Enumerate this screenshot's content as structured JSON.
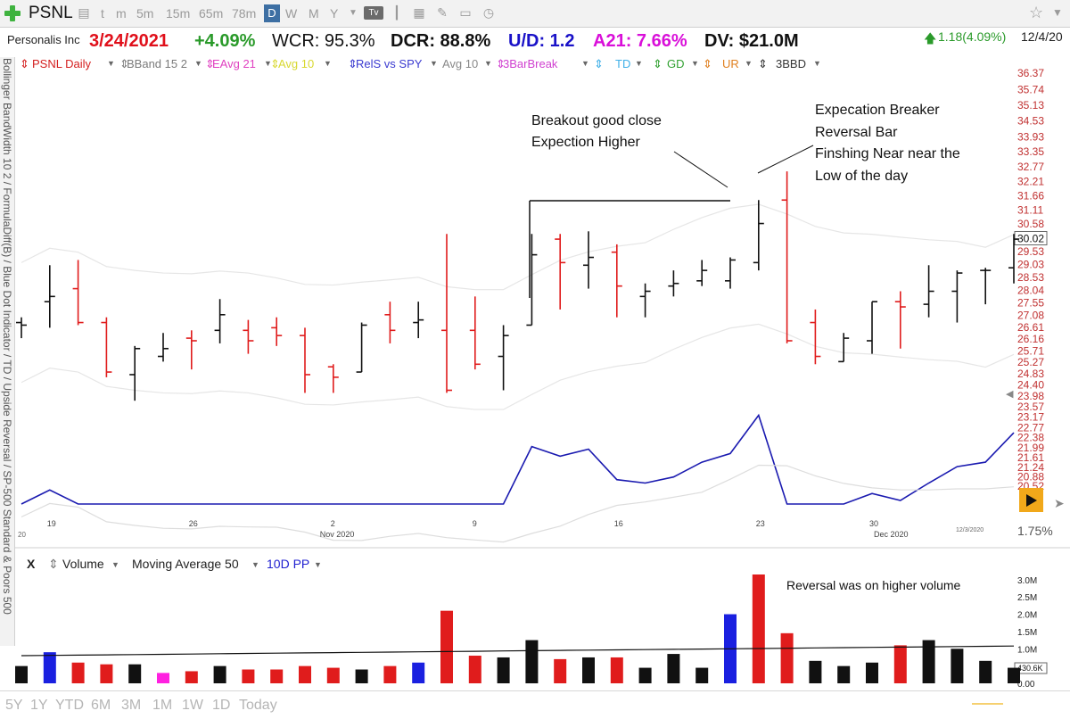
{
  "toolbar": {
    "symbol": "PSNL",
    "periods": [
      "t",
      "m",
      "5m",
      "15m",
      "65m",
      "78m",
      "D",
      "W",
      "M",
      "Y"
    ],
    "tv_label": "Tv"
  },
  "info": {
    "company": "Personalis Inc",
    "date": "3/24/2021",
    "change_pct": "+4.09%",
    "wcr": "WCR: 95.3%",
    "dcr": "DCR: 88.8%",
    "ud": "U/D: 1.2",
    "a21": "A21: 7.66%",
    "dv": "DV: $21.0M",
    "last_change": "1.18(4.09%)",
    "last_date": "12/4/20",
    "colors": {
      "red": "#e0101b",
      "green": "#2a9a2a",
      "blue": "#1a12c8",
      "magenta": "#d90fd9",
      "black": "#111111"
    }
  },
  "indicators": [
    {
      "label": "PSNL Daily",
      "color": "#d42020"
    },
    {
      "label": "BBand 15 2",
      "color": "#7a7a7a"
    },
    {
      "label": "EAvg 21",
      "color": "#e040c0"
    },
    {
      "label": "Avg 10",
      "color": "#d8d830"
    },
    {
      "label": "RelS vs SPY",
      "color": "#3a3ad0"
    },
    {
      "label": "Avg 10",
      "color": "#888888"
    },
    {
      "label": "3BarBreak",
      "color": "#d040d0"
    },
    {
      "label": "TD",
      "color": "#40b0e8"
    },
    {
      "label": "GD",
      "color": "#30a030"
    },
    {
      "label": "UR",
      "color": "#e08020"
    },
    {
      "label": "3BBD",
      "color": "#333333"
    }
  ],
  "sidebar_text": "Bollinger BandWidth 10 2 / FormulaDiff(B) / Blue Dot Indicator / TD / Upside Reversal / SP-500 Standard & Poors 500",
  "volume_header": {
    "close": "X",
    "volume": "Volume",
    "ma": "Moving Average 50",
    "pp": "10D PP"
  },
  "bottom_ranges": [
    "5Y",
    "1Y",
    "YTD",
    "6M",
    "3M",
    "1M",
    "1W",
    "1D",
    "Today"
  ],
  "pct_label": "1.75%",
  "annotations": {
    "breakout": [
      "Breakout good close",
      "Expection Higher"
    ],
    "breaker": [
      "Expecation Breaker",
      "Reversal Bar",
      "Finshing Near near the",
      "Low of the day"
    ],
    "volume_note": "Reversal was on higher volume"
  },
  "chart_data": {
    "type": "bar",
    "subtype": "ohlc",
    "price_axis": {
      "ticks": [
        "36.37",
        "35.74",
        "35.13",
        "34.53",
        "33.93",
        "33.35",
        "32.77",
        "32.21",
        "31.66",
        "31.11",
        "30.58",
        "30.02",
        "29.53",
        "29.03",
        "28.53",
        "28.04",
        "27.55",
        "27.08",
        "26.61",
        "26.16",
        "25.71",
        "25.27",
        "24.83",
        "24.40",
        "23.98",
        "23.57",
        "23.17",
        "22.77",
        "22.38",
        "21.99",
        "21.61",
        "21.24",
        "20.88",
        "20.52"
      ],
      "current_price": "30.02",
      "range": [
        20.3,
        36.6
      ]
    },
    "x_axis": {
      "day_labels": [
        "19",
        "26",
        "2",
        "9",
        "16",
        "23",
        "30"
      ],
      "month_labels": [
        "Nov 2020",
        "Dec 2020"
      ],
      "edge_labels": [
        "20",
        "12/3/2020"
      ]
    },
    "bars": [
      {
        "o": 26.8,
        "h": 27.0,
        "l": 26.2,
        "c": 26.7,
        "color": "black"
      },
      {
        "o": 27.6,
        "h": 29.0,
        "l": 26.6,
        "c": 27.8,
        "color": "black"
      },
      {
        "o": 28.1,
        "h": 29.2,
        "l": 26.7,
        "c": 26.8,
        "color": "red"
      },
      {
        "o": 26.8,
        "h": 27.0,
        "l": 24.7,
        "c": 24.9,
        "color": "red"
      },
      {
        "o": 24.8,
        "h": 25.9,
        "l": 23.8,
        "c": 25.8,
        "color": "black"
      },
      {
        "o": 25.5,
        "h": 26.4,
        "l": 25.3,
        "c": 25.8,
        "color": "black"
      },
      {
        "o": 26.2,
        "h": 26.5,
        "l": 25.0,
        "c": 26.1,
        "color": "red"
      },
      {
        "o": 26.5,
        "h": 27.7,
        "l": 26.0,
        "c": 27.1,
        "color": "black"
      },
      {
        "o": 26.5,
        "h": 26.9,
        "l": 25.6,
        "c": 26.1,
        "color": "red"
      },
      {
        "o": 26.6,
        "h": 27.0,
        "l": 25.9,
        "c": 26.3,
        "color": "red"
      },
      {
        "o": 26.3,
        "h": 26.6,
        "l": 24.1,
        "c": 24.8,
        "color": "red"
      },
      {
        "o": 25.1,
        "h": 25.2,
        "l": 24.1,
        "c": 24.7,
        "color": "red"
      },
      {
        "o": 24.9,
        "h": 26.8,
        "l": 24.9,
        "c": 26.7,
        "color": "black"
      },
      {
        "o": 27.1,
        "h": 27.6,
        "l": 26.0,
        "c": 26.5,
        "color": "red"
      },
      {
        "o": 26.8,
        "h": 27.6,
        "l": 26.2,
        "c": 26.9,
        "color": "black"
      },
      {
        "o": 26.5,
        "h": 30.2,
        "l": 24.1,
        "c": 24.2,
        "color": "red"
      },
      {
        "o": 26.5,
        "h": 27.8,
        "l": 25.0,
        "c": 25.2,
        "color": "red"
      },
      {
        "o": 25.5,
        "h": 26.7,
        "l": 24.2,
        "c": 26.3,
        "color": "black"
      },
      {
        "o": 26.7,
        "h": 30.2,
        "l": 26.7,
        "c": 29.4,
        "color": "black"
      },
      {
        "o": 30.0,
        "h": 30.2,
        "l": 27.3,
        "c": 29.1,
        "color": "red"
      },
      {
        "o": 29.0,
        "h": 30.3,
        "l": 28.1,
        "c": 29.3,
        "color": "black"
      },
      {
        "o": 29.5,
        "h": 29.8,
        "l": 27.0,
        "c": 28.2,
        "color": "red"
      },
      {
        "o": 27.8,
        "h": 28.3,
        "l": 27.0,
        "c": 28.0,
        "color": "black"
      },
      {
        "o": 28.2,
        "h": 28.8,
        "l": 27.8,
        "c": 28.3,
        "color": "black"
      },
      {
        "o": 28.4,
        "h": 29.2,
        "l": 28.2,
        "c": 28.8,
        "color": "black"
      },
      {
        "o": 28.4,
        "h": 29.3,
        "l": 28.1,
        "c": 29.2,
        "color": "black"
      },
      {
        "o": 29.1,
        "h": 31.5,
        "l": 28.8,
        "c": 30.6,
        "color": "black"
      },
      {
        "o": 31.5,
        "h": 32.6,
        "l": 26.0,
        "c": 26.1,
        "color": "red"
      },
      {
        "o": 26.8,
        "h": 27.3,
        "l": 25.2,
        "c": 25.5,
        "color": "red"
      },
      {
        "o": 25.3,
        "h": 26.4,
        "l": 25.3,
        "c": 26.2,
        "color": "black"
      },
      {
        "o": 26.1,
        "h": 27.6,
        "l": 25.6,
        "c": 27.6,
        "color": "black"
      },
      {
        "o": 27.6,
        "h": 28.0,
        "l": 25.8,
        "c": 27.4,
        "color": "red"
      },
      {
        "o": 27.5,
        "h": 29.0,
        "l": 27.0,
        "c": 28.0,
        "color": "black"
      },
      {
        "o": 28.0,
        "h": 28.8,
        "l": 26.8,
        "c": 28.7,
        "color": "black"
      },
      {
        "o": 28.8,
        "h": 28.9,
        "l": 27.5,
        "c": 28.8,
        "color": "black"
      },
      {
        "o": 28.9,
        "h": 30.2,
        "l": 28.3,
        "c": 30.0,
        "color": "black"
      }
    ],
    "volume_axis": {
      "ticks": [
        "3.0M",
        "2.5M",
        "2.0M",
        "1.5M",
        "1.0M",
        "0.50M",
        "0.00"
      ],
      "range": [
        0,
        3.2
      ],
      "avg_label": "430.6K"
    },
    "volume_millions": [
      0.5,
      0.9,
      0.6,
      0.55,
      0.55,
      0.3,
      0.35,
      0.5,
      0.4,
      0.4,
      0.5,
      0.45,
      0.4,
      0.5,
      0.6,
      2.1,
      0.8,
      0.75,
      1.25,
      0.7,
      0.75,
      0.75,
      0.45,
      0.85,
      0.45,
      2.0,
      3.15,
      1.45,
      0.65,
      0.5,
      0.6,
      1.1,
      1.25,
      1.0,
      0.65,
      0.45
    ],
    "volume_colors": [
      "black",
      "blue",
      "red",
      "red",
      "black",
      "magenta",
      "red",
      "black",
      "red",
      "red",
      "red",
      "red",
      "black",
      "red",
      "blue",
      "red",
      "red",
      "black",
      "black",
      "red",
      "black",
      "red",
      "black",
      "black",
      "black",
      "blue",
      "red",
      "red",
      "black",
      "black",
      "black",
      "red",
      "black",
      "black",
      "black",
      "black"
    ]
  }
}
